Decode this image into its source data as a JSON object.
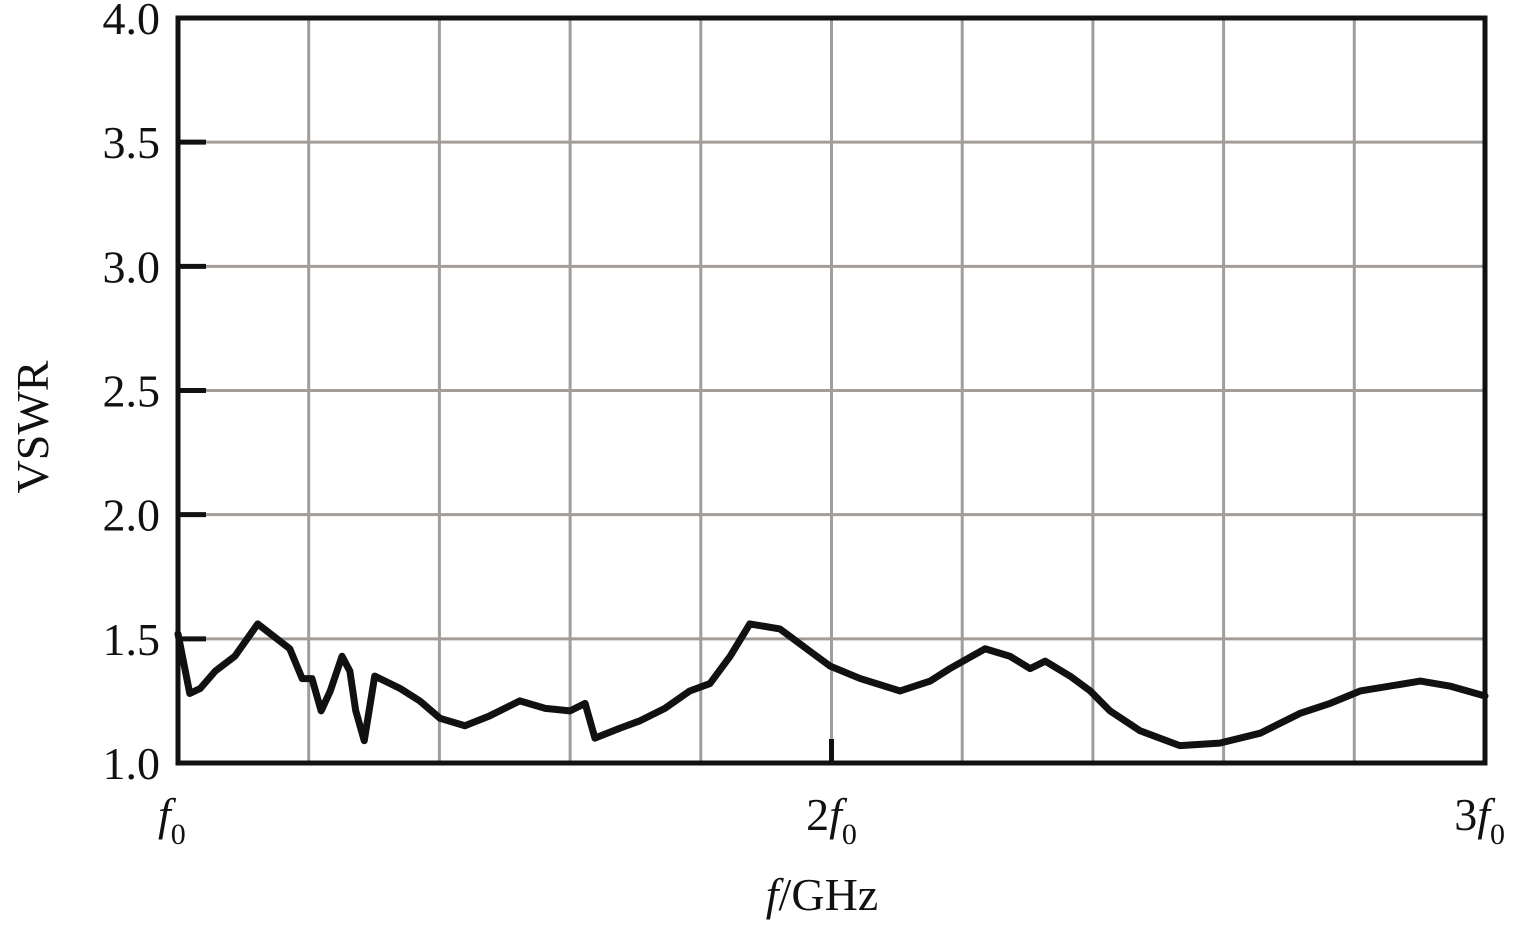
{
  "chart_data": {
    "type": "line",
    "ylabel": "VSWR",
    "xlabel": "f/GHz",
    "xlim": [
      1,
      3
    ],
    "ylim": [
      1,
      4
    ],
    "xticks": [
      {
        "value": 1,
        "label": "f0"
      },
      {
        "value": 2,
        "label": "2f0"
      },
      {
        "value": 3,
        "label": "3f0"
      }
    ],
    "xgrid": [
      1.2,
      1.4,
      1.6,
      1.8,
      2.0,
      2.2,
      2.4,
      2.6,
      2.8
    ],
    "yticks": [
      {
        "value": 1,
        "label": "1.0"
      },
      1.5,
      {
        "value": 2,
        "label": "2.0"
      },
      2.5,
      {
        "value": 3,
        "label": "3.0"
      },
      3.5,
      {
        "value": 4,
        "label": "4.0"
      }
    ],
    "grid": true,
    "series": [
      {
        "color": "#111111",
        "x": [
          1.0,
          1.018,
          1.034,
          1.057,
          1.087,
          1.122,
          1.171,
          1.19,
          1.205,
          1.219,
          1.233,
          1.251,
          1.263,
          1.272,
          1.285,
          1.301,
          1.34,
          1.37,
          1.401,
          1.439,
          1.477,
          1.523,
          1.562,
          1.6,
          1.623,
          1.638,
          1.676,
          1.707,
          1.745,
          1.783,
          1.814,
          1.845,
          1.875,
          1.921,
          1.967,
          1.998,
          2.044,
          2.105,
          2.151,
          2.181,
          2.235,
          2.273,
          2.304,
          2.327,
          2.365,
          2.396,
          2.426,
          2.472,
          2.533,
          2.594,
          2.656,
          2.717,
          2.763,
          2.809,
          2.901,
          2.946,
          3.0
        ],
        "values": [
          1.52,
          1.28,
          1.3,
          1.37,
          1.43,
          1.56,
          1.46,
          1.34,
          1.34,
          1.21,
          1.29,
          1.43,
          1.37,
          1.21,
          1.09,
          1.35,
          1.3,
          1.25,
          1.18,
          1.15,
          1.19,
          1.25,
          1.22,
          1.21,
          1.24,
          1.1,
          1.14,
          1.17,
          1.22,
          1.29,
          1.32,
          1.43,
          1.56,
          1.54,
          1.45,
          1.39,
          1.34,
          1.29,
          1.33,
          1.38,
          1.46,
          1.43,
          1.38,
          1.41,
          1.35,
          1.29,
          1.21,
          1.13,
          1.07,
          1.08,
          1.12,
          1.2,
          1.24,
          1.29,
          1.33,
          1.31,
          1.27
        ]
      }
    ]
  }
}
